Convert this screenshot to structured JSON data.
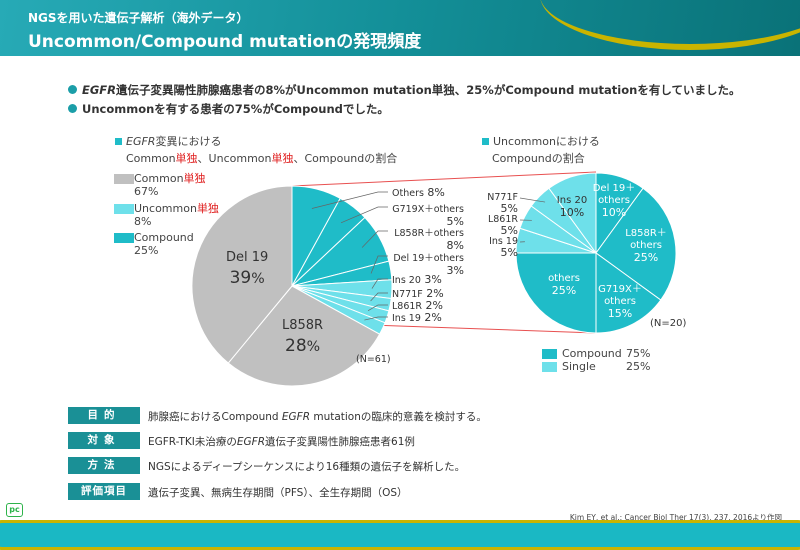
{
  "header": {
    "subtitle": "NGSを用いた遺伝子解析（海外データ）",
    "title": "Uncommon/Compound mutationの発現頻度"
  },
  "bullets": [
    {
      "em": "EGFR",
      "text": "遺伝子変異陽性肺腺癌患者の8%がUncommon mutation単独、25%がCompound mutationを有していました。"
    },
    {
      "text": "Uncommonを有する患者の75%がCompoundでした。"
    }
  ],
  "colors": {
    "common": "#c0c0c0",
    "uncommon": "#6ee0ea",
    "compound": "#1fbcc8",
    "accent": "#1a9096",
    "red": "#e02020"
  },
  "chart_data": [
    {
      "type": "pie",
      "caption_em": "EGFR",
      "caption_1": "変異における",
      "caption_2a": "Common",
      "caption_2b": "単独",
      "caption_2c": "、Uncommon",
      "caption_2d": "単独",
      "caption_2e": "、Compoundの割合",
      "n": "(N=61)",
      "legend": [
        {
          "name": "Common",
          "suffix": "単独",
          "value": "67%"
        },
        {
          "name": "Uncommon",
          "suffix": "単独",
          "value": "8%"
        },
        {
          "name": "Compound",
          "suffix": "",
          "value": "25%"
        }
      ],
      "slices": [
        {
          "label": "Others",
          "value": 8,
          "group": "compound"
        },
        {
          "label": "G719X＋others",
          "value": 5,
          "group": "compound"
        },
        {
          "label": "L858R＋others",
          "value": 8,
          "group": "compound"
        },
        {
          "label": "Del 19＋others",
          "value": 3,
          "group": "compound"
        },
        {
          "label": "Ins 20",
          "value": 3,
          "group": "uncommon"
        },
        {
          "label": "N771F",
          "value": 2,
          "group": "uncommon"
        },
        {
          "label": "L861R",
          "value": 2,
          "group": "uncommon"
        },
        {
          "label": "Ins 19",
          "value": 2,
          "group": "uncommon"
        },
        {
          "label": "L858R",
          "value": 28,
          "group": "common"
        },
        {
          "label": "Del 19",
          "value": 39,
          "group": "common"
        }
      ]
    },
    {
      "type": "pie",
      "caption_1": "Uncommonにおける",
      "caption_2": "Compoundの割合",
      "n": "(N=20)",
      "legend": [
        {
          "name": "Compound",
          "value": "75%"
        },
        {
          "name": "Single",
          "value": "25%"
        }
      ],
      "slices": [
        {
          "label": "Del 19＋others",
          "value": 10,
          "group": "compound"
        },
        {
          "label": "L858R＋others",
          "value": 25,
          "group": "compound"
        },
        {
          "label": "G719X＋others",
          "value": 15,
          "group": "compound"
        },
        {
          "label": "others",
          "value": 25,
          "group": "compound"
        },
        {
          "label": "Ins 19",
          "value": 5,
          "group": "uncommon"
        },
        {
          "label": "L861R",
          "value": 5,
          "group": "uncommon"
        },
        {
          "label": "N771F",
          "value": 5,
          "group": "uncommon"
        },
        {
          "label": "Ins 20",
          "value": 10,
          "group": "uncommon"
        }
      ]
    }
  ],
  "study": [
    {
      "tag": "目的",
      "text_a": "肺腺癌におけるCompound ",
      "text_em": "EGFR",
      "text_b": " mutationの臨床的意義を検討する。"
    },
    {
      "tag": "対象",
      "text_a": "EGFR-TKI未治療の",
      "text_em": "EGFR",
      "text_b": "遺伝子変異陽性肺腺癌患者61例"
    },
    {
      "tag": "方法",
      "text_a": "NGSによるディープシーケンスにより16種類の遺伝子を解析した。"
    },
    {
      "tag": "評価項目",
      "text_a": "遺伝子変異、無病生存期間（PFS）、全生存期間（OS）"
    }
  ],
  "logo": "PC",
  "citation": "Kim EY, et al.: Cancer Biol Ther 17(3), 237, 2016より作図"
}
